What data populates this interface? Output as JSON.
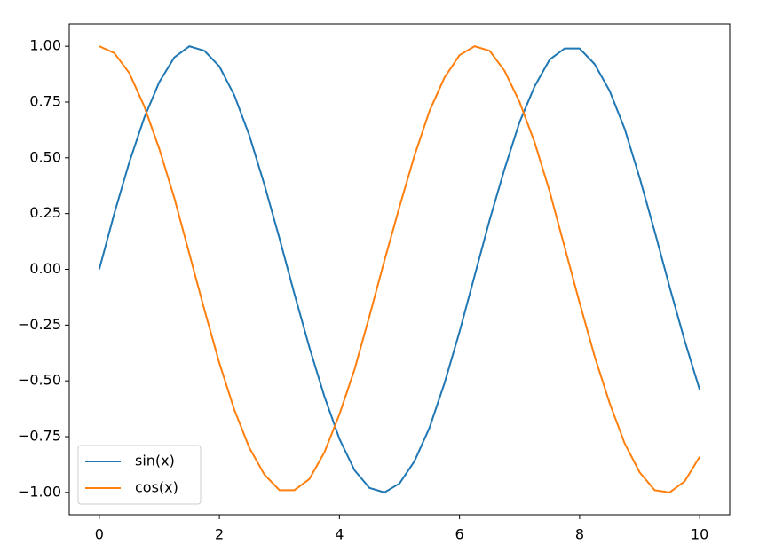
{
  "chart_data": {
    "type": "line",
    "x": [
      0,
      0.25,
      0.5,
      0.75,
      1,
      1.25,
      1.5,
      1.75,
      2,
      2.25,
      2.5,
      2.75,
      3,
      3.25,
      3.5,
      3.75,
      4,
      4.25,
      4.5,
      4.75,
      5,
      5.25,
      5.5,
      5.75,
      6,
      6.25,
      6.5,
      6.75,
      7,
      7.25,
      7.5,
      7.75,
      8,
      8.25,
      8.5,
      8.75,
      9,
      9.25,
      9.5,
      9.75,
      10
    ],
    "series": [
      {
        "name": "sin(x)",
        "color": "#1f77b4",
        "values": [
          0,
          0.25,
          0.48,
          0.68,
          0.84,
          0.95,
          1.0,
          0.98,
          0.91,
          0.78,
          0.6,
          0.38,
          0.14,
          -0.11,
          -0.35,
          -0.57,
          -0.76,
          -0.9,
          -0.98,
          -1.0,
          -0.96,
          -0.86,
          -0.71,
          -0.51,
          -0.28,
          -0.03,
          0.22,
          0.45,
          0.66,
          0.82,
          0.94,
          0.99,
          0.99,
          0.92,
          0.8,
          0.63,
          0.41,
          0.17,
          -0.08,
          -0.32,
          -0.54
        ]
      },
      {
        "name": "cos(x)",
        "color": "#ff7f0e",
        "values": [
          1.0,
          0.97,
          0.88,
          0.73,
          0.54,
          0.32,
          0.07,
          -0.18,
          -0.42,
          -0.63,
          -0.8,
          -0.92,
          -0.99,
          -0.99,
          -0.94,
          -0.82,
          -0.65,
          -0.45,
          -0.21,
          0.04,
          0.28,
          0.51,
          0.71,
          0.86,
          0.96,
          1.0,
          0.98,
          0.89,
          0.75,
          0.57,
          0.35,
          0.1,
          -0.15,
          -0.39,
          -0.6,
          -0.78,
          -0.91,
          -0.99,
          -1.0,
          -0.95,
          -0.84
        ]
      }
    ],
    "xlim": [
      -0.5,
      10.5
    ],
    "ylim": [
      -1.1,
      1.1
    ],
    "xticks": [
      0,
      2,
      4,
      6,
      8,
      10
    ],
    "yticks": [
      {
        "value": 1,
        "label": "1.00"
      },
      {
        "value": 0.75,
        "label": "0.75"
      },
      {
        "value": 0.5,
        "label": "0.50"
      },
      {
        "value": 0.25,
        "label": "0.25"
      },
      {
        "value": 0,
        "label": "0.00"
      },
      {
        "value": -0.25,
        "label": "−0.25"
      },
      {
        "value": -0.5,
        "label": "−0.50"
      },
      {
        "value": -0.75,
        "label": "−0.75"
      },
      {
        "value": -1,
        "label": "−1.00"
      }
    ],
    "grid": false,
    "legend": "lower left"
  }
}
